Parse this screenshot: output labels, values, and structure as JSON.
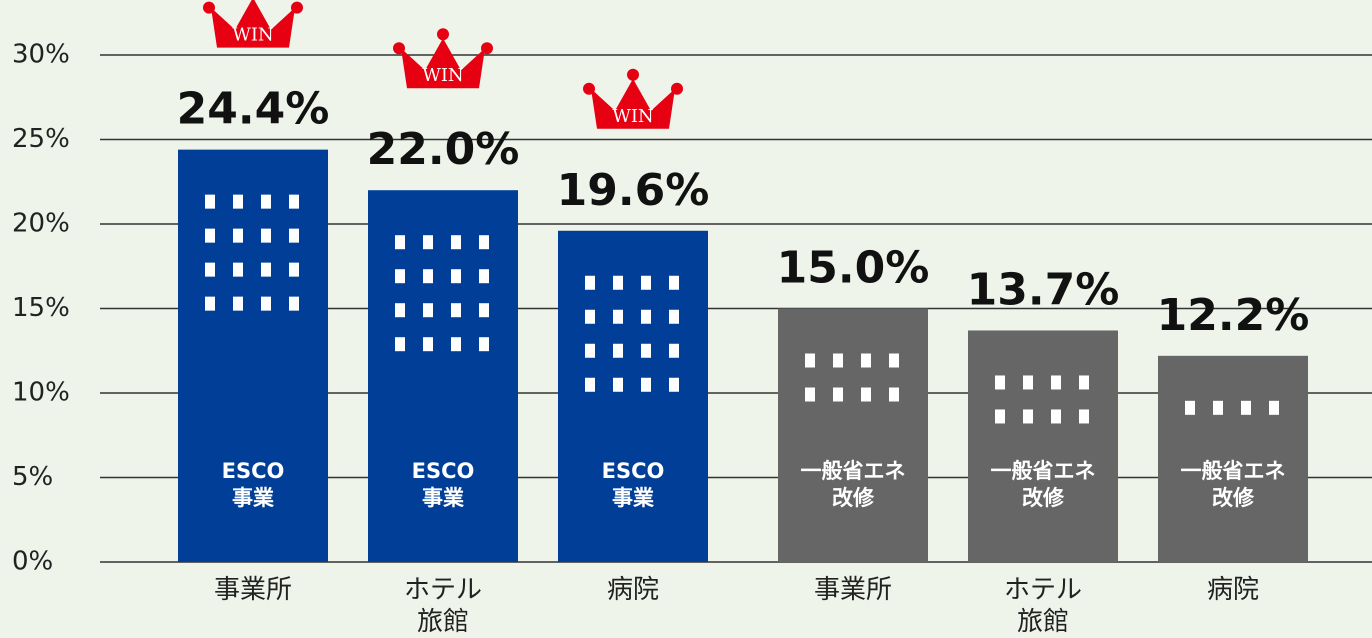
{
  "chart_data": {
    "type": "bar",
    "categories": [
      "事業所",
      "ホテル\n旅館",
      "病院",
      "事業所",
      "ホテル\n旅館",
      "病院"
    ],
    "values": [
      24.4,
      22.0,
      19.6,
      15.0,
      13.7,
      12.2
    ],
    "value_labels": [
      "24.4%",
      "22.0%",
      "19.6%",
      "15.0%",
      "13.7%",
      "12.2%"
    ],
    "bar_labels": [
      "ESCO\n事業",
      "ESCO\n事業",
      "ESCO\n事業",
      "一般省エネ\n改修",
      "一般省エネ\n改修",
      "一般省エネ\n改修"
    ],
    "win_labels": [
      "WIN",
      "WIN",
      "WIN",
      null,
      null,
      null
    ],
    "colors": [
      "#003e98",
      "#003e98",
      "#003e98",
      "#666666",
      "#666666",
      "#666666"
    ],
    "ylim": [
      0,
      30
    ],
    "yticks": [
      {
        "value": 0,
        "label": "0%"
      },
      {
        "value": 5,
        "label": "5%"
      },
      {
        "value": 10,
        "label": "10%"
      },
      {
        "value": 15,
        "label": "15%"
      },
      {
        "value": 20,
        "label": "20%"
      },
      {
        "value": 25,
        "label": "25%"
      },
      {
        "value": 30,
        "label": "30%"
      }
    ],
    "grid": true
  }
}
